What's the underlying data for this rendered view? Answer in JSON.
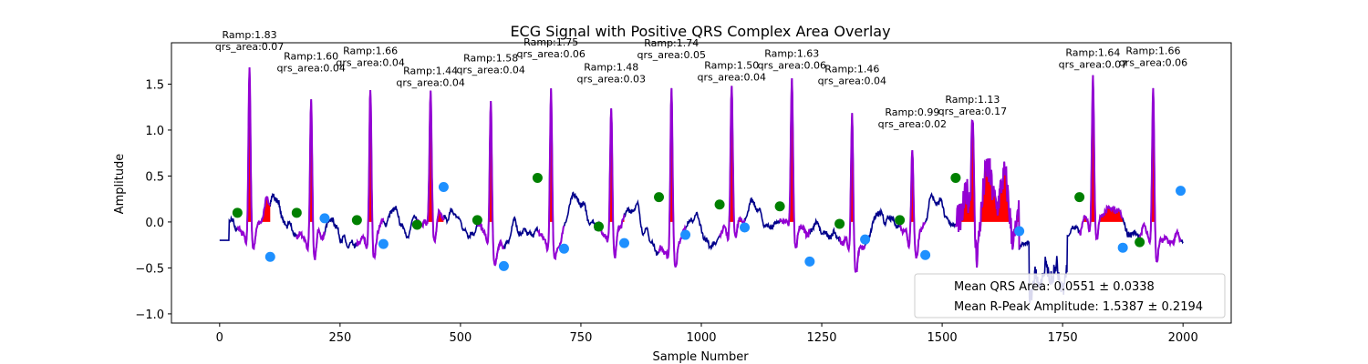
{
  "chart_data": {
    "type": "line",
    "title": "ECG Signal with Positive QRS Complex Area Overlay",
    "xlabel": "Sample Number",
    "ylabel": "Amplitude",
    "xlim": [
      -100,
      2100
    ],
    "ylim": [
      -1.1,
      1.95
    ],
    "xticks": [
      0,
      250,
      500,
      750,
      1000,
      1250,
      1500,
      1750,
      2000
    ],
    "yticks": [
      -1.0,
      -0.5,
      0.0,
      0.5,
      1.0,
      1.5
    ],
    "xtick_labels": [
      "0",
      "250",
      "500",
      "750",
      "1000",
      "1250",
      "1500",
      "1750",
      "2000"
    ],
    "ytick_labels": [
      "−1.0",
      "−0.5",
      "0.0",
      "0.5",
      "1.0",
      "1.5"
    ],
    "grid": false,
    "colors": {
      "signal": "#00008b",
      "qrs_segment": "#9400d3",
      "qrs_area": "#ff0000",
      "onset_marker": "#008000",
      "offset_marker": "#1e90ff"
    },
    "beats": [
      {
        "r": 62,
        "ramp": 1.83,
        "area": 0.07,
        "ramp_label": "Ramp:1.83",
        "area_label": "qrs_area:0.07",
        "on": 37,
        "on_y": 0.1,
        "off": 105,
        "off_y": -0.38
      },
      {
        "r": 190,
        "ramp": 1.6,
        "area": 0.04,
        "ramp_label": "Ramp:1.60",
        "area_label": "qrs_area:0.04",
        "on": 160,
        "on_y": 0.1,
        "off": 218,
        "off_y": 0.04
      },
      {
        "r": 313,
        "ramp": 1.66,
        "area": 0.04,
        "ramp_label": "Ramp:1.66",
        "area_label": "qrs_area:0.04",
        "on": 285,
        "on_y": 0.02,
        "off": 340,
        "off_y": -0.24
      },
      {
        "r": 438,
        "ramp": 1.44,
        "area": 0.04,
        "ramp_label": "Ramp:1.44",
        "area_label": "qrs_area:0.04",
        "on": 410,
        "on_y": -0.03,
        "off": 465,
        "off_y": 0.38
      },
      {
        "r": 563,
        "ramp": 1.58,
        "area": 0.04,
        "ramp_label": "Ramp:1.58",
        "area_label": "qrs_area:0.04",
        "on": 535,
        "on_y": 0.02,
        "off": 590,
        "off_y": -0.48
      },
      {
        "r": 688,
        "ramp": 1.75,
        "area": 0.06,
        "ramp_label": "Ramp:1.75",
        "area_label": "qrs_area:0.06",
        "on": 660,
        "on_y": 0.48,
        "off": 715,
        "off_y": -0.29
      },
      {
        "r": 813,
        "ramp": 1.48,
        "area": 0.03,
        "ramp_label": "Ramp:1.48",
        "area_label": "qrs_area:0.03",
        "on": 787,
        "on_y": -0.05,
        "off": 840,
        "off_y": -0.23
      },
      {
        "r": 938,
        "ramp": 1.74,
        "area": 0.05,
        "ramp_label": "Ramp:1.74",
        "area_label": "qrs_area:0.05",
        "on": 912,
        "on_y": 0.27,
        "off": 967,
        "off_y": -0.14
      },
      {
        "r": 1063,
        "ramp": 1.5,
        "area": 0.04,
        "ramp_label": "Ramp:1.50",
        "area_label": "qrs_area:0.04",
        "on": 1038,
        "on_y": 0.19,
        "off": 1090,
        "off_y": -0.06
      },
      {
        "r": 1188,
        "ramp": 1.63,
        "area": 0.06,
        "ramp_label": "Ramp:1.63",
        "area_label": "qrs_area:0.06",
        "on": 1163,
        "on_y": 0.17,
        "off": 1225,
        "off_y": -0.43
      },
      {
        "r": 1313,
        "ramp": 1.46,
        "area": 0.04,
        "ramp_label": "Ramp:1.46",
        "area_label": "qrs_area:0.04",
        "on": 1287,
        "on_y": -0.02,
        "off": 1340,
        "off_y": -0.19
      },
      {
        "r": 1438,
        "ramp": 0.99,
        "area": 0.02,
        "ramp_label": "Ramp:0.99",
        "area_label": "qrs_area:0.02",
        "on": 1412,
        "on_y": 0.02,
        "off": 1465,
        "off_y": -0.36
      },
      {
        "r": 1563,
        "ramp": 1.13,
        "area": 0.17,
        "ramp_label": "Ramp:1.13",
        "area_label": "qrs_area:0.17",
        "on": 1528,
        "on_y": 0.48,
        "off": 1660,
        "off_y": -0.1
      },
      {
        "r": 1813,
        "ramp": 1.64,
        "area": 0.07,
        "ramp_label": "Ramp:1.64",
        "area_label": "qrs_area:0.07",
        "on": 1785,
        "on_y": 0.27,
        "off": 1875,
        "off_y": -0.28
      },
      {
        "r": 1938,
        "ramp": 1.66,
        "area": 0.06,
        "ramp_label": "Ramp:1.66",
        "area_label": "qrs_area:0.06",
        "on": 1910,
        "on_y": -0.22,
        "off": 1995,
        "off_y": 0.34
      }
    ],
    "legend": {
      "position": "lower-right",
      "entries": [
        "Mean QRS Area: 0.0551 ± 0.0338",
        "Mean R-Peak Amplitude: 1.5387 ± 0.2194"
      ]
    }
  }
}
